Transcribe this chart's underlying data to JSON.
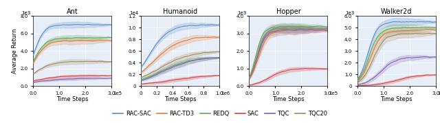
{
  "subplots": [
    {
      "title": "Ant",
      "xlabel": "Time Steps",
      "xlim_max": 300000,
      "xticks": [
        0,
        100000,
        200000,
        300000
      ],
      "xticklabels": [
        "0.0",
        "1.0",
        "2.0",
        "3.0"
      ],
      "xoffset": "1e5",
      "ylim_max": 8000,
      "yticks": [
        0,
        2000,
        4000,
        6000,
        8000
      ],
      "yticklabels": [
        "0.0",
        "2.0",
        "4.0",
        "6.0",
        "8.0"
      ],
      "yoffset": "1e3",
      "show_ylabel": true
    },
    {
      "title": "Humanoid",
      "xlabel": "Time Steps",
      "xlim_max": 1000000,
      "xticks": [
        0,
        200000,
        400000,
        600000,
        800000,
        1000000
      ],
      "xticklabels": [
        "0",
        "0.2",
        "0.4",
        "0.6",
        "0.8",
        "1.0"
      ],
      "xoffset": "1e6",
      "ylim_max": 12000,
      "yticks": [
        0,
        2000,
        4000,
        6000,
        8000,
        10000,
        12000
      ],
      "yticklabels": [
        "0",
        "0.2",
        "0.4",
        "0.6",
        "0.8",
        "1.0",
        "1.2"
      ],
      "yoffset": "1e4",
      "show_ylabel": false
    },
    {
      "title": "Hopper",
      "xlabel": "Time Steps",
      "xlim_max": 300000,
      "xticks": [
        0,
        100000,
        200000,
        300000
      ],
      "xticklabels": [
        "0.0",
        "1.0",
        "2.0",
        "3.0"
      ],
      "xoffset": "1e5",
      "ylim_max": 4000,
      "yticks": [
        0,
        1000,
        2000,
        3000,
        4000
      ],
      "yticklabels": [
        "0.0",
        "1.0",
        "2.0",
        "3.0",
        "4.0"
      ],
      "yoffset": "1e3",
      "show_ylabel": false
    },
    {
      "title": "Walker2d",
      "xlabel": "Time Steps",
      "xlim_max": 300000,
      "xticks": [
        0,
        100000,
        200000,
        300000
      ],
      "xticklabels": [
        "0.0",
        "1.0",
        "2.0",
        "3.0"
      ],
      "xoffset": "1e5",
      "ylim_max": 6000,
      "yticks": [
        0,
        1000,
        2000,
        3000,
        4000,
        5000,
        6000
      ],
      "yticklabels": [
        "0",
        "1.0",
        "2.0",
        "3.0",
        "4.0",
        "5.0",
        "6.0"
      ],
      "yoffset": "1e3",
      "show_ylabel": false
    }
  ],
  "algorithms": [
    "RAC-SAC",
    "RAC-TD3",
    "REDQ",
    "SAC",
    "TQC",
    "TQC20"
  ],
  "colors": {
    "RAC-SAC": "#5b8fcc",
    "RAC-TD3": "#e07b39",
    "REDQ": "#5aaa5a",
    "SAC": "#d94040",
    "TQC": "#8060b0",
    "TQC20": "#9e8a5a"
  },
  "curve_params": {
    "Ant": {
      "RAC-SAC": [
        7000,
        15,
        500,
        0.05
      ],
      "RAC-TD3": [
        5200,
        12,
        700,
        0.08
      ],
      "REDQ": [
        5500,
        13,
        600,
        0.06
      ],
      "SAC": [
        1200,
        6,
        2000,
        0.12
      ],
      "TQC": [
        900,
        5,
        3000,
        0.15
      ],
      "TQC20": [
        2800,
        9,
        1200,
        0.1
      ]
    },
    "Humanoid": {
      "RAC-SAC": [
        10500,
        8,
        100000,
        0.05
      ],
      "RAC-TD3": [
        8500,
        6,
        160000,
        0.07
      ],
      "REDQ": [
        5000,
        5,
        250000,
        0.09
      ],
      "SAC": [
        2000,
        4,
        400000,
        0.14
      ],
      "TQC": [
        5000,
        5,
        280000,
        0.09
      ],
      "TQC20": [
        6000,
        5,
        230000,
        0.08
      ]
    },
    "Hopper": {
      "RAC-SAC": [
        3300,
        18,
        30000,
        0.07
      ],
      "RAC-TD3": [
        3200,
        16,
        35000,
        0.08
      ],
      "REDQ": [
        3400,
        20,
        25000,
        0.06
      ],
      "SAC": [
        1000,
        10,
        80000,
        0.12
      ],
      "TQC": [
        3200,
        18,
        30000,
        0.07
      ],
      "TQC20": [
        3300,
        19,
        28000,
        0.07
      ]
    },
    "Walker2d": {
      "RAC-SAC": [
        5500,
        16,
        40000,
        0.06
      ],
      "RAC-TD3": [
        4800,
        14,
        50000,
        0.07
      ],
      "REDQ": [
        5000,
        15,
        45000,
        0.07
      ],
      "SAC": [
        1000,
        7,
        150000,
        0.12
      ],
      "TQC": [
        2500,
        10,
        90000,
        0.1
      ],
      "TQC20": [
        4500,
        13,
        60000,
        0.08
      ]
    }
  },
  "background_color": "#e8eef7",
  "figure_background": "#ffffff",
  "seed": 42
}
